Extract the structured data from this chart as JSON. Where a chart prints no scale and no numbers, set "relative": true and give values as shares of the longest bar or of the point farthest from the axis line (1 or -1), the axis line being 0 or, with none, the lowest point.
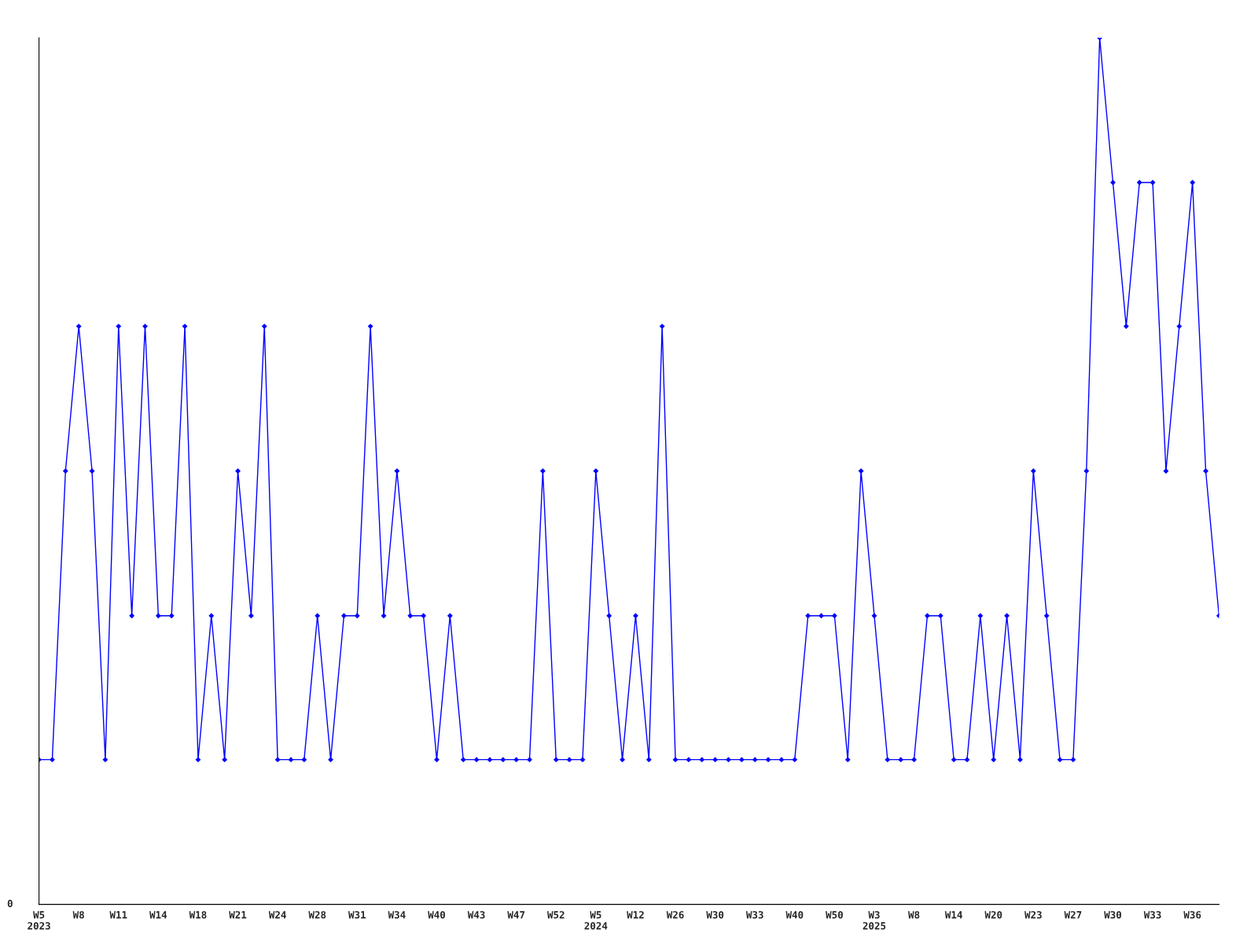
{
  "chart_data": {
    "type": "line",
    "relative": true,
    "marker": "diamond",
    "line_style": "solid",
    "grid": false,
    "legend": false,
    "categories": [
      "W5\n2023",
      null,
      null,
      "W8",
      null,
      null,
      "W11",
      null,
      null,
      "W14",
      null,
      null,
      "W18",
      null,
      null,
      "W21",
      null,
      null,
      "W24",
      null,
      null,
      "W28",
      null,
      null,
      "W31",
      null,
      null,
      "W34",
      null,
      null,
      "W40",
      null,
      null,
      "W43",
      null,
      null,
      "W47",
      null,
      null,
      "W52",
      null,
      null,
      "W5\n2024",
      null,
      null,
      "W12",
      null,
      null,
      "W26",
      null,
      null,
      "W30",
      null,
      null,
      "W33",
      null,
      null,
      "W40",
      null,
      null,
      "W50",
      null,
      null,
      "W3\n2025",
      null,
      null,
      "W8",
      null,
      null,
      "W14",
      null,
      null,
      "W20",
      null,
      null,
      "W23",
      null,
      null,
      "W27",
      null,
      null,
      "W30",
      null,
      null,
      "W33",
      null,
      null,
      "W36",
      null,
      null
    ],
    "annotations": [
      "0"
    ],
    "series": [
      {
        "color": "#0000ff",
        "values": [
          0.167,
          0.167,
          0.5,
          0.667,
          0.5,
          0.167,
          0.667,
          0.333,
          0.667,
          0.333,
          0.333,
          0.667,
          0.167,
          0.333,
          0.167,
          0.5,
          0.333,
          0.667,
          0.167,
          0.167,
          0.167,
          0.333,
          0.167,
          0.333,
          0.333,
          0.667,
          0.333,
          0.5,
          0.333,
          0.333,
          0.167,
          0.333,
          0.167,
          0.167,
          0.167,
          0.167,
          0.167,
          0.167,
          0.5,
          0.167,
          0.167,
          0.167,
          0.5,
          0.333,
          0.167,
          0.333,
          0.167,
          0.667,
          0.167,
          0.167,
          0.167,
          0.167,
          0.167,
          0.167,
          0.167,
          0.167,
          0.167,
          0.167,
          0.333,
          0.333,
          0.333,
          0.167,
          0.5,
          0.333,
          0.167,
          0.167,
          0.167,
          0.333,
          0.333,
          0.167,
          0.167,
          0.333,
          0.167,
          0.333,
          0.167,
          0.5,
          0.333,
          0.167,
          0.167,
          0.5,
          1,
          0.833,
          0.667,
          0.833,
          0.833,
          0.5,
          0.667,
          0.833,
          0.5,
          0.333
        ]
      }
    ]
  }
}
